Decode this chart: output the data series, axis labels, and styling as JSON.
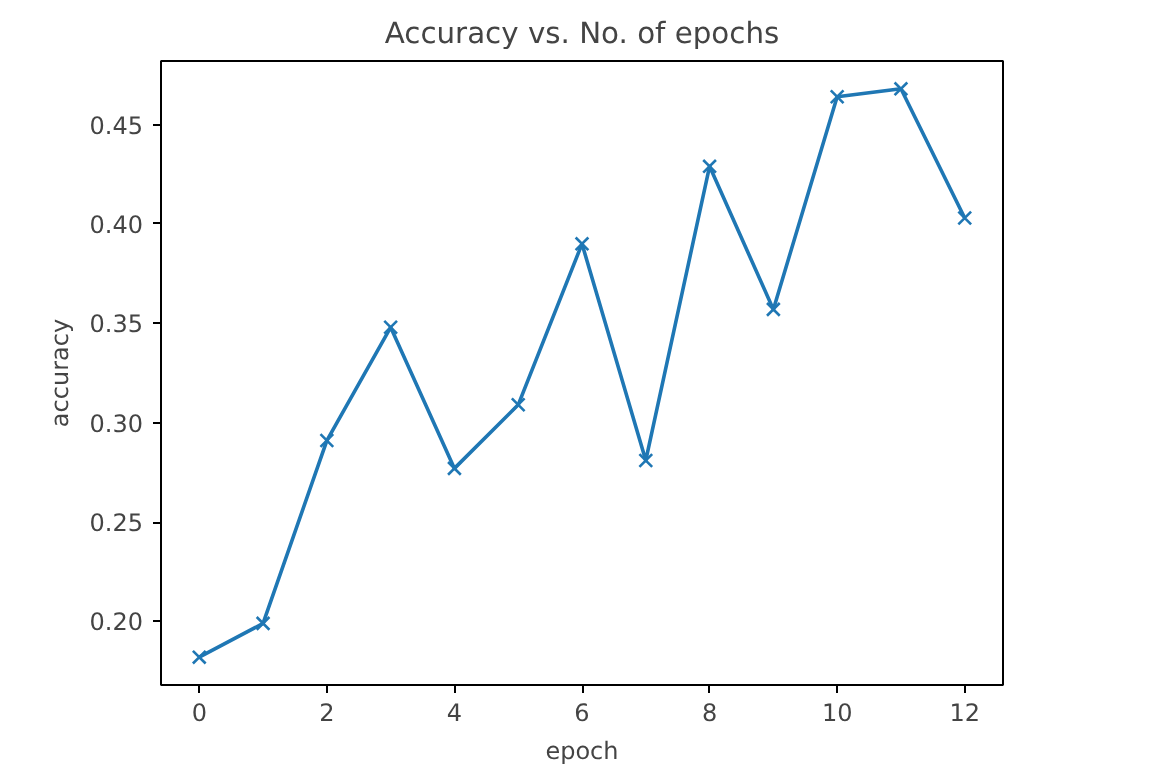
{
  "chart_data": {
    "type": "line",
    "title": "Accuracy vs. No. of epochs",
    "xlabel": "epoch",
    "ylabel": "accuracy",
    "x": [
      0,
      1,
      2,
      3,
      4,
      5,
      6,
      7,
      8,
      9,
      10,
      11,
      12
    ],
    "series": [
      {
        "color": "#1f77b4",
        "values": [
          0.182,
          0.199,
          0.291,
          0.348,
          0.277,
          0.309,
          0.39,
          0.281,
          0.429,
          0.357,
          0.464,
          0.468,
          0.403
        ]
      }
    ],
    "xlim": [
      -0.6,
      12.6
    ],
    "ylim": [
      0.168,
      0.482
    ],
    "xticks": [
      0,
      2,
      4,
      6,
      8,
      10,
      12
    ],
    "yticks": [
      {
        "value": 0.2,
        "label": "0.20"
      },
      {
        "value": 0.25,
        "label": "0.25"
      },
      {
        "value": 0.3,
        "label": "0.30"
      },
      {
        "value": 0.35,
        "label": "0.35"
      },
      {
        "value": 0.4,
        "label": "0.40"
      },
      {
        "value": 0.45,
        "label": "0.45"
      }
    ],
    "marker": "cross",
    "line_style": "solid",
    "grid": false
  }
}
